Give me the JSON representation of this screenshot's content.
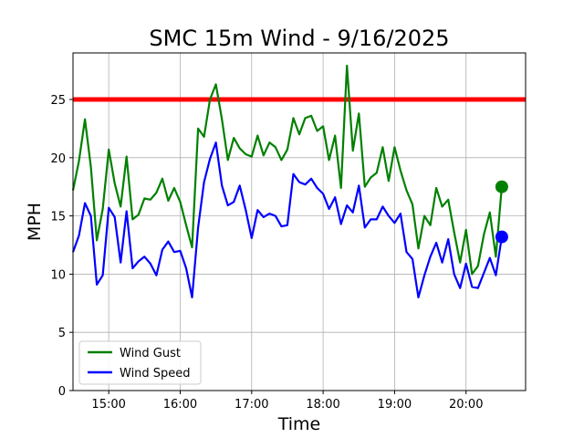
{
  "chart_data": {
    "type": "line",
    "title": "SMC 15m Wind - 9/16/2025",
    "xlabel": "Time",
    "ylabel": "MPH",
    "xlim": [
      "14:30",
      "20:50"
    ],
    "ylim": [
      0,
      29
    ],
    "grid": true,
    "legend": "bottom-left",
    "x_ticks": [
      "15:00",
      "16:00",
      "17:00",
      "18:00",
      "19:00",
      "20:00"
    ],
    "y_ticks": [
      0,
      5,
      10,
      15,
      20,
      25
    ],
    "threshold": {
      "value": 25,
      "color": "#ff0000"
    },
    "x": [
      "14:30",
      "14:35",
      "14:40",
      "14:45",
      "14:50",
      "14:55",
      "15:00",
      "15:05",
      "15:10",
      "15:15",
      "15:20",
      "15:25",
      "15:30",
      "15:35",
      "15:40",
      "15:45",
      "15:50",
      "15:55",
      "16:00",
      "16:05",
      "16:10",
      "16:15",
      "16:20",
      "16:25",
      "16:30",
      "16:35",
      "16:40",
      "16:45",
      "16:50",
      "16:55",
      "17:00",
      "17:05",
      "17:10",
      "17:15",
      "17:20",
      "17:25",
      "17:30",
      "17:35",
      "17:40",
      "17:45",
      "17:50",
      "17:55",
      "18:00",
      "18:05",
      "18:10",
      "18:15",
      "18:20",
      "18:25",
      "18:30",
      "18:35",
      "18:40",
      "18:45",
      "18:50",
      "18:55",
      "19:00",
      "19:05",
      "19:10",
      "19:15",
      "19:20",
      "19:25",
      "19:30",
      "19:35",
      "19:40",
      "19:45",
      "19:50",
      "19:55",
      "20:00",
      "20:05",
      "20:10",
      "20:15",
      "20:20",
      "20:25",
      "20:30"
    ],
    "series": [
      {
        "name": "Wind Gust",
        "color": "#008000",
        "values": [
          17.2,
          19.7,
          23.3,
          19.2,
          12.9,
          15.6,
          20.7,
          17.8,
          15.8,
          20.1,
          14.7,
          15.1,
          16.5,
          16.4,
          17.0,
          18.2,
          16.3,
          17.4,
          16.2,
          14.2,
          12.3,
          22.5,
          21.8,
          25.0,
          26.3,
          23.3,
          19.8,
          21.7,
          20.8,
          20.3,
          20.1,
          21.9,
          20.2,
          21.3,
          20.9,
          19.8,
          20.7,
          23.4,
          22.0,
          23.4,
          23.6,
          22.3,
          22.7,
          19.8,
          21.9,
          17.4,
          27.9,
          20.6,
          23.8,
          17.5,
          18.3,
          18.7,
          20.9,
          18.0,
          20.9,
          18.9,
          17.2,
          16.0,
          12.2,
          15.0,
          14.2,
          17.4,
          15.8,
          16.4,
          13.6,
          11.0,
          13.8,
          10.0,
          10.7,
          13.4,
          15.3,
          11.5,
          17.5
        ]
      },
      {
        "name": "Wind Speed",
        "color": "#0000ff",
        "values": [
          11.9,
          13.3,
          16.1,
          15.0,
          9.1,
          9.9,
          15.7,
          14.9,
          11.0,
          15.4,
          10.5,
          11.1,
          11.5,
          10.9,
          9.9,
          12.1,
          12.8,
          11.9,
          12.0,
          10.5,
          8.0,
          14.0,
          17.9,
          19.9,
          21.3,
          17.6,
          15.9,
          16.2,
          17.6,
          15.5,
          13.1,
          15.5,
          14.9,
          15.2,
          15.0,
          14.1,
          14.2,
          18.6,
          17.9,
          17.7,
          18.2,
          17.4,
          16.9,
          15.6,
          16.6,
          14.3,
          15.9,
          15.3,
          17.6,
          14.0,
          14.7,
          14.7,
          15.8,
          15.0,
          14.4,
          15.2,
          11.9,
          11.3,
          8.0,
          9.9,
          11.5,
          12.7,
          11.0,
          13.0,
          10.0,
          8.8,
          10.9,
          8.9,
          8.8,
          10.1,
          11.4,
          9.9,
          13.2
        ]
      }
    ]
  }
}
